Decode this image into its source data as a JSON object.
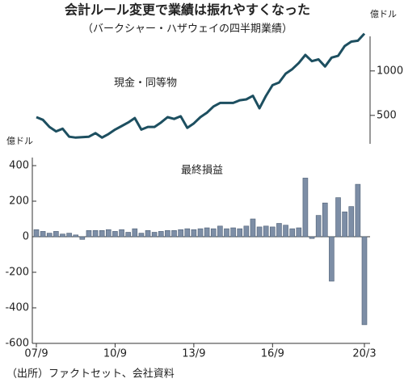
{
  "title": "会計ルール変更で業績は振れやすくなった",
  "subtitle": "（バークシャー・ハザウェイの四半期業績）",
  "source": "（出所）ファクトセット、会社資料",
  "chart_data": [
    {
      "type": "line",
      "annotation": "現金・同等物",
      "unit": "億ドル",
      "color": "#1d4f60",
      "values": [
        480,
        450,
        370,
        320,
        350,
        260,
        250,
        255,
        260,
        300,
        250,
        290,
        340,
        380,
        420,
        470,
        340,
        370,
        370,
        420,
        480,
        460,
        490,
        360,
        410,
        480,
        530,
        600,
        640,
        640,
        640,
        670,
        680,
        720,
        580,
        720,
        840,
        870,
        970,
        1020,
        1090,
        1180,
        1110,
        1130,
        1050,
        1150,
        1170,
        1280,
        1330,
        1340,
        1420
      ],
      "ylim": [
        180,
        1480
      ],
      "yticks": [
        500,
        1000
      ]
    },
    {
      "type": "bar",
      "annotation": "最終損益",
      "unit": "億ドル",
      "color": "#7d8ea6",
      "categories": [
        "07/9",
        null,
        null,
        null,
        null,
        null,
        null,
        null,
        null,
        null,
        null,
        null,
        "10/9",
        null,
        null,
        null,
        null,
        null,
        null,
        null,
        null,
        null,
        null,
        null,
        "13/9",
        null,
        null,
        null,
        null,
        null,
        null,
        null,
        null,
        null,
        null,
        null,
        "16/9",
        null,
        null,
        null,
        null,
        null,
        null,
        null,
        null,
        null,
        null,
        null,
        null,
        null,
        "20/3"
      ],
      "values": [
        40,
        30,
        20,
        30,
        15,
        20,
        10,
        -15,
        35,
        35,
        35,
        40,
        30,
        40,
        25,
        45,
        20,
        35,
        25,
        30,
        35,
        35,
        40,
        45,
        40,
        45,
        50,
        45,
        60,
        45,
        50,
        45,
        60,
        100,
        55,
        60,
        55,
        75,
        65,
        45,
        50,
        330,
        -10,
        120,
        190,
        -250,
        220,
        140,
        170,
        295,
        -495
      ],
      "ylim": [
        -600,
        400
      ],
      "yticks": [
        -600,
        -400,
        -200,
        0,
        200,
        400
      ]
    }
  ]
}
